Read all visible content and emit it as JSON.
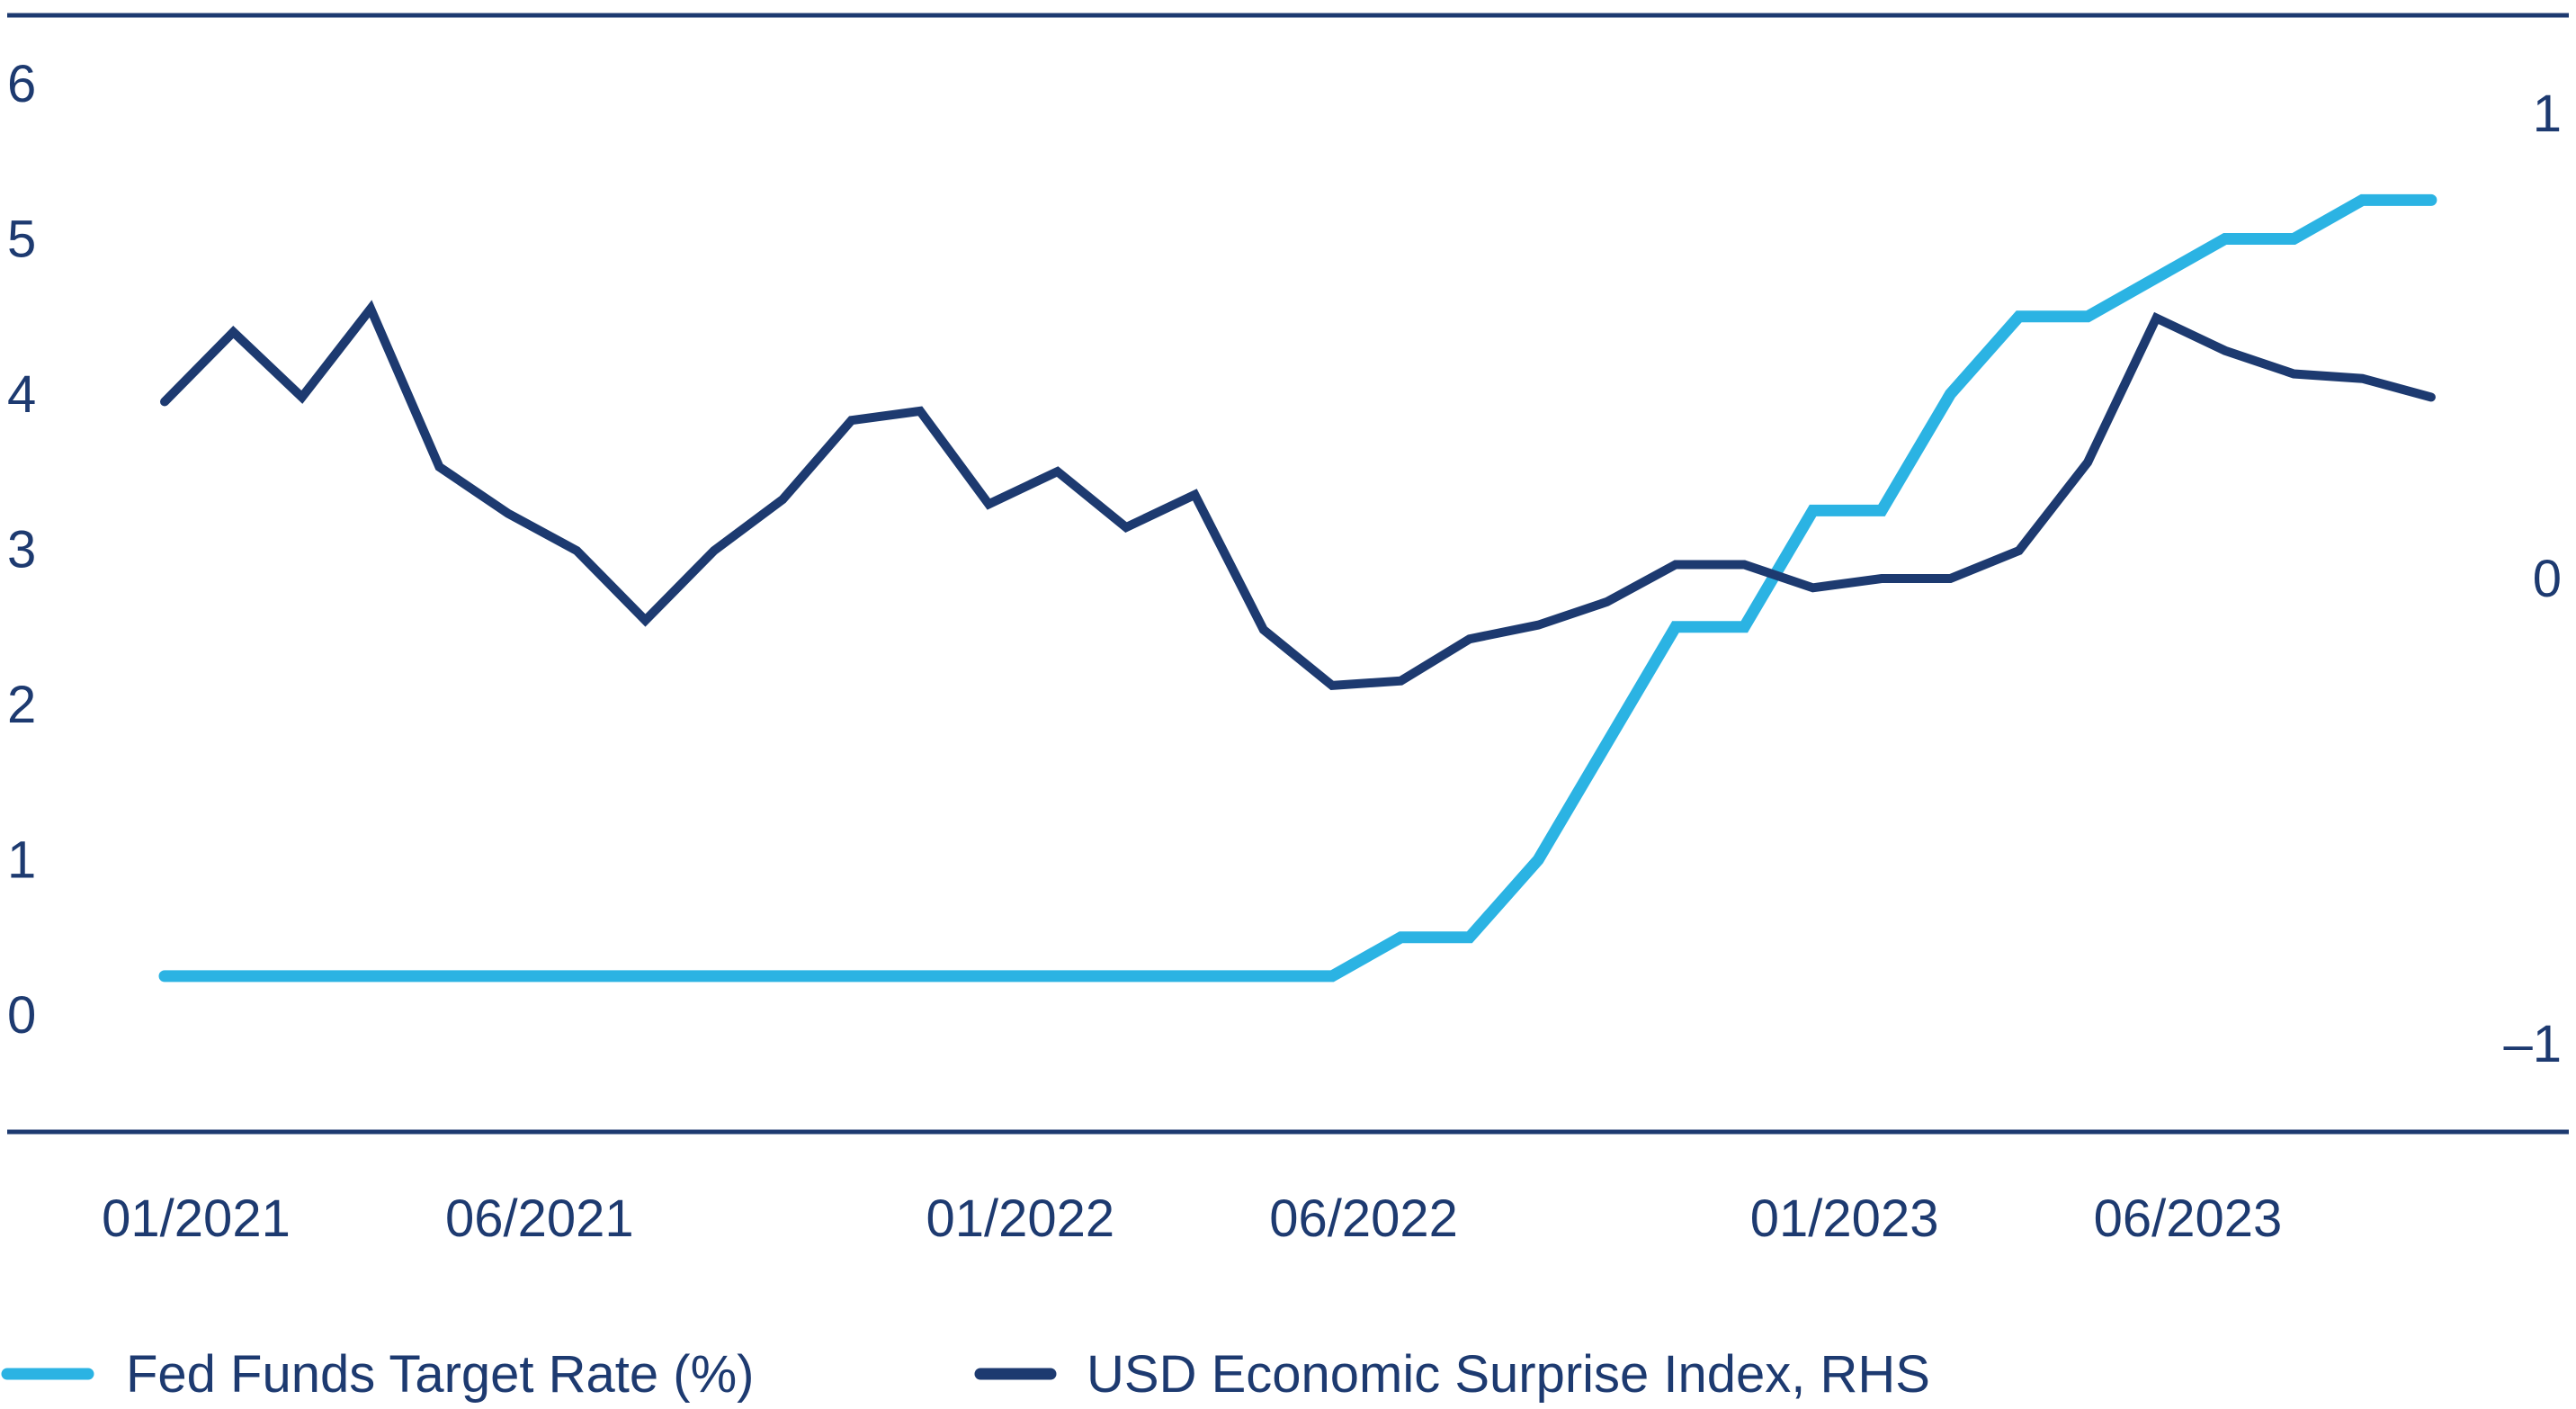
{
  "chart_data": {
    "type": "line",
    "title": "",
    "xlabel": "",
    "ylabel": "",
    "x_ticks": [
      "01/2021",
      "06/2021",
      "01/2022",
      "06/2022",
      "01/2023",
      "06/2023"
    ],
    "x": [
      "01/2021",
      "02/2021",
      "03/2021",
      "04/2021",
      "05/2021",
      "06/2021",
      "07/2021",
      "08/2021",
      "09/2021",
      "10/2021",
      "11/2021",
      "12/2021",
      "01/2022",
      "02/2022",
      "03/2022",
      "04/2022",
      "05/2022",
      "06/2022",
      "07/2022",
      "08/2022",
      "09/2022",
      "10/2022",
      "11/2022",
      "12/2022",
      "01/2023",
      "02/2023",
      "03/2023",
      "04/2023",
      "05/2023",
      "06/2023",
      "07/2023",
      "08/2023",
      "09/2023",
      "10/2023"
    ],
    "y_left": {
      "ticks": [
        "6",
        "5",
        "4",
        "3",
        "2",
        "1",
        "0"
      ],
      "range": [
        0,
        6
      ]
    },
    "y_right": {
      "ticks": [
        "1",
        "0",
        "–1"
      ],
      "range": [
        -1,
        1
      ]
    },
    "grid": false,
    "legend_position": "bottom",
    "series": [
      {
        "name": "Fed Funds Target Rate (%)",
        "axis": "left",
        "color": "#2bb3e3",
        "values": [
          0.25,
          0.25,
          0.25,
          0.25,
          0.25,
          0.25,
          0.25,
          0.25,
          0.25,
          0.25,
          0.25,
          0.25,
          0.25,
          0.25,
          0.25,
          0.25,
          0.25,
          0.25,
          0.5,
          0.5,
          1.0,
          1.75,
          2.5,
          2.5,
          3.25,
          3.25,
          4.0,
          4.5,
          4.5,
          4.75,
          5.0,
          5.0,
          5.25,
          5.25
        ]
      },
      {
        "name": "USD Economic Surprise Index, RHS",
        "axis": "right",
        "color": "#1d3a70",
        "values": [
          0.38,
          0.53,
          0.39,
          0.58,
          0.24,
          0.14,
          0.06,
          -0.09,
          0.06,
          0.17,
          0.34,
          0.36,
          0.16,
          0.23,
          0.11,
          0.18,
          -0.11,
          -0.23,
          -0.22,
          -0.13,
          -0.1,
          -0.05,
          0.03,
          0.03,
          -0.02,
          0.0,
          0.0,
          0.06,
          0.25,
          0.56,
          0.49,
          0.44,
          0.43,
          0.39
        ]
      }
    ]
  }
}
